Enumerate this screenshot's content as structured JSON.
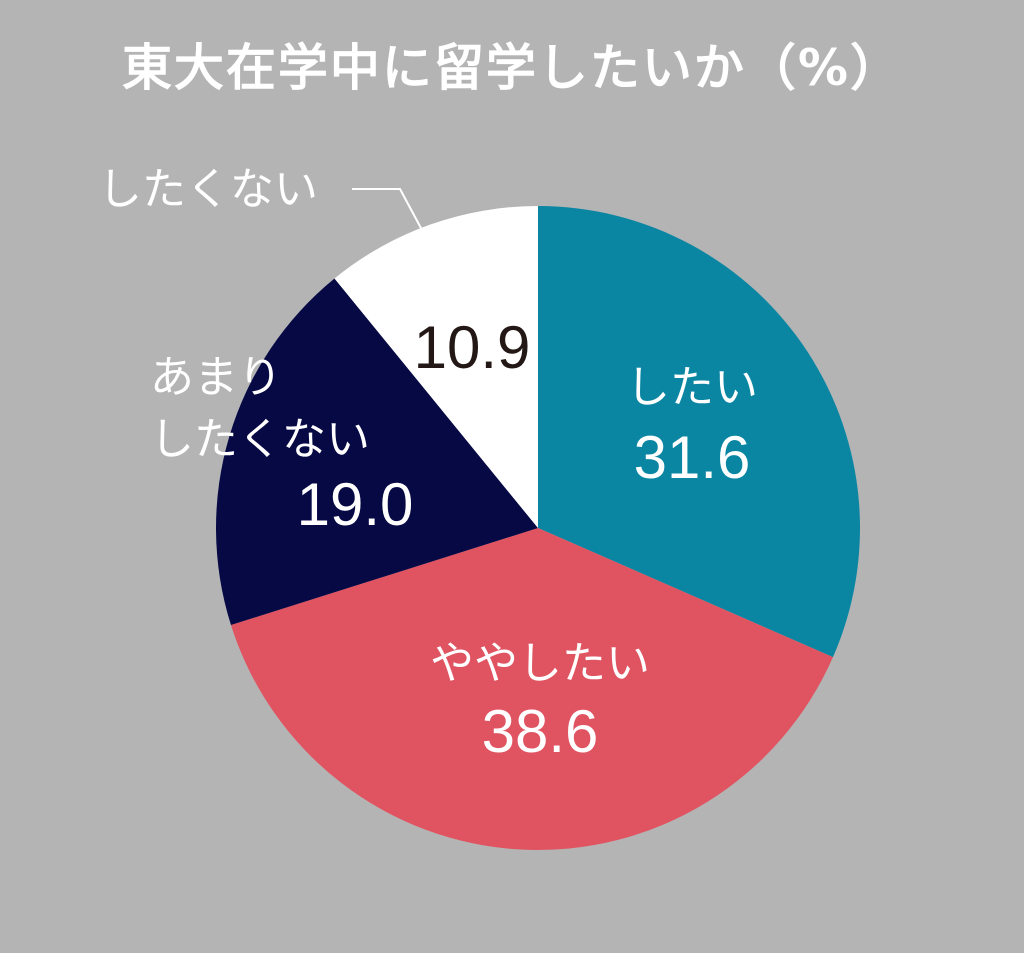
{
  "chart_data": {
    "type": "pie",
    "title": "東大在学中に留学したいか（%）",
    "start_angle_deg": 0,
    "direction": "clockwise",
    "slices": [
      {
        "label": "したい",
        "value": 31.6,
        "value_text": "31.6",
        "color": "#0a86a3",
        "text_color": "#ffffff"
      },
      {
        "label": "ややしたい",
        "value": 38.6,
        "value_text": "38.6",
        "color": "#e05462",
        "text_color": "#ffffff"
      },
      {
        "label": "あまりしたくない",
        "label_lines": [
          "あまり",
          "したくない"
        ],
        "value": 19.0,
        "value_text": "19.0",
        "color": "#070945",
        "text_color": "#ffffff"
      },
      {
        "label": "したくない",
        "value": 10.9,
        "value_text": "10.9",
        "color": "#ffffff",
        "text_color": "#231815",
        "label_outside": true
      }
    ]
  }
}
